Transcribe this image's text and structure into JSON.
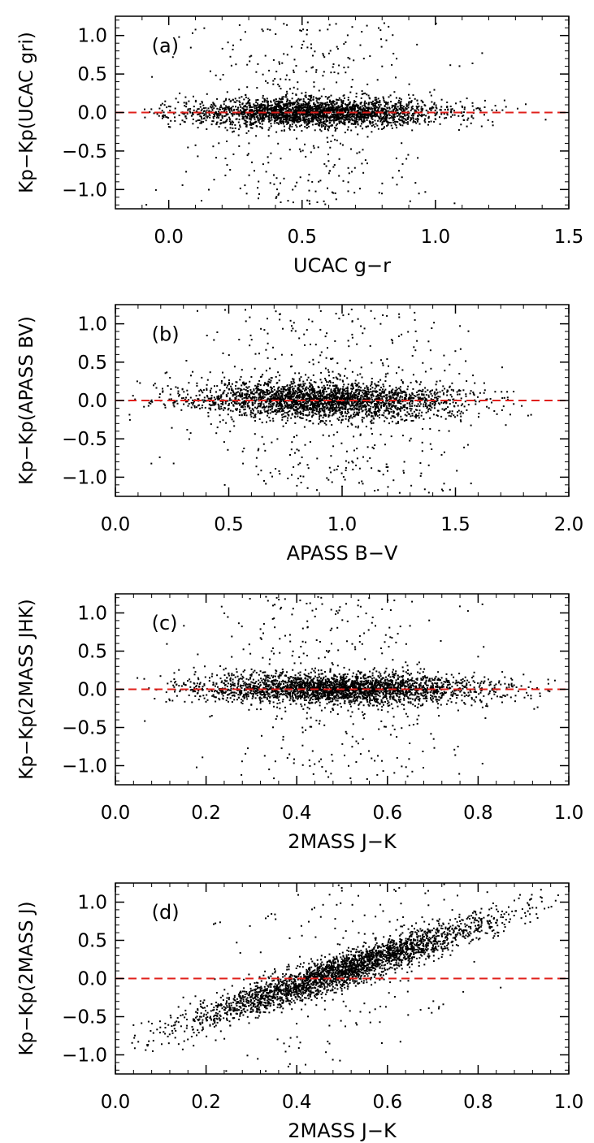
{
  "chart_data": [
    {
      "type": "scatter",
      "panel_label": "(a)",
      "xlabel": "UCAC g−r",
      "ylabel": "Kp−Kp(UCAC gri)",
      "xlim": [
        -0.2,
        1.5
      ],
      "ylim": [
        -1.25,
        1.25
      ],
      "xticks": [
        0.0,
        0.5,
        1.0,
        1.5
      ],
      "xtick_labels": [
        "0.0",
        "0.5",
        "1.0",
        "1.5"
      ],
      "yticks": [
        1.0,
        0.5,
        0.0,
        -0.5,
        -1.0
      ],
      "ytick_labels": [
        "1.0",
        "0.5",
        "0.0",
        "−0.5",
        "−1.0"
      ],
      "reference_line": {
        "y": 0.0,
        "style": "dashed",
        "color": "#e0201b"
      },
      "point_color": "#000000",
      "grid": false,
      "distribution": {
        "x_mean": 0.55,
        "x_sd": 0.24,
        "x_range": [
          -0.1,
          1.48
        ],
        "trend": [
          0.0,
          0.0
        ],
        "y_sd": 0.09,
        "outlier_fraction": 0.12,
        "n_points": 3000
      }
    },
    {
      "type": "scatter",
      "panel_label": "(b)",
      "xlabel": "APASS B−V",
      "ylabel": "Kp−Kp(APASS BV)",
      "xlim": [
        0.0,
        2.0
      ],
      "ylim": [
        -1.25,
        1.25
      ],
      "xticks": [
        0.0,
        0.5,
        1.0,
        1.5,
        2.0
      ],
      "xtick_labels": [
        "0.0",
        "0.5",
        "1.0",
        "1.5",
        "2.0"
      ],
      "yticks": [
        1.0,
        0.5,
        0.0,
        -0.5,
        -1.0
      ],
      "ytick_labels": [
        "1.0",
        "0.5",
        "0.0",
        "−0.5",
        "−1.0"
      ],
      "reference_line": {
        "y": 0.0,
        "style": "dashed",
        "color": "#e0201b"
      },
      "point_color": "#000000",
      "grid": false,
      "distribution": {
        "x_mean": 0.92,
        "x_sd": 0.3,
        "x_range": [
          0.05,
          1.98
        ],
        "trend": [
          0.05,
          -0.05
        ],
        "y_sd": 0.12,
        "outlier_fraction": 0.14,
        "n_points": 3000
      }
    },
    {
      "type": "scatter",
      "panel_label": "(c)",
      "xlabel": "2MASS J−K",
      "ylabel": "Kp−Kp(2MASS JHK)",
      "xlim": [
        0.0,
        1.0
      ],
      "ylim": [
        -1.25,
        1.25
      ],
      "xticks": [
        0.0,
        0.2,
        0.4,
        0.6,
        0.8,
        1.0
      ],
      "xtick_labels": [
        "0.0",
        "0.2",
        "0.4",
        "0.6",
        "0.8",
        "1.0"
      ],
      "yticks": [
        1.0,
        0.5,
        0.0,
        -0.5,
        -1.0
      ],
      "ytick_labels": [
        "1.0",
        "0.5",
        "0.0",
        "−0.5",
        "−1.0"
      ],
      "reference_line": {
        "y": 0.0,
        "style": "dashed",
        "color": "#e0201b"
      },
      "point_color": "#000000",
      "grid": false,
      "distribution": {
        "x_mean": 0.5,
        "x_sd": 0.16,
        "x_range": [
          0.04,
          0.98
        ],
        "trend": [
          0.02,
          -0.02
        ],
        "y_sd": 0.1,
        "outlier_fraction": 0.1,
        "n_points": 3000
      }
    },
    {
      "type": "scatter",
      "panel_label": "(d)",
      "xlabel": "2MASS J−K",
      "ylabel": "Kp−Kp(2MASS J)",
      "xlim": [
        0.0,
        1.0
      ],
      "ylim": [
        -1.25,
        1.25
      ],
      "xticks": [
        0.0,
        0.2,
        0.4,
        0.6,
        0.8,
        1.0
      ],
      "xtick_labels": [
        "0.0",
        "0.2",
        "0.4",
        "0.6",
        "0.8",
        "1.0"
      ],
      "yticks": [
        1.0,
        0.5,
        0.0,
        -0.5,
        -1.0
      ],
      "ytick_labels": [
        "1.0",
        "0.5",
        "0.0",
        "−0.5",
        "−1.0"
      ],
      "reference_line": {
        "y": 0.0,
        "style": "dashed",
        "color": "#e0201b"
      },
      "point_color": "#000000",
      "grid": false,
      "distribution": {
        "x_mean": 0.5,
        "x_sd": 0.17,
        "x_range": [
          0.03,
          0.98
        ],
        "trend": [
          -0.9,
          2.0
        ],
        "y_sd": 0.11,
        "outlier_fraction": 0.06,
        "n_points": 3000
      }
    }
  ]
}
